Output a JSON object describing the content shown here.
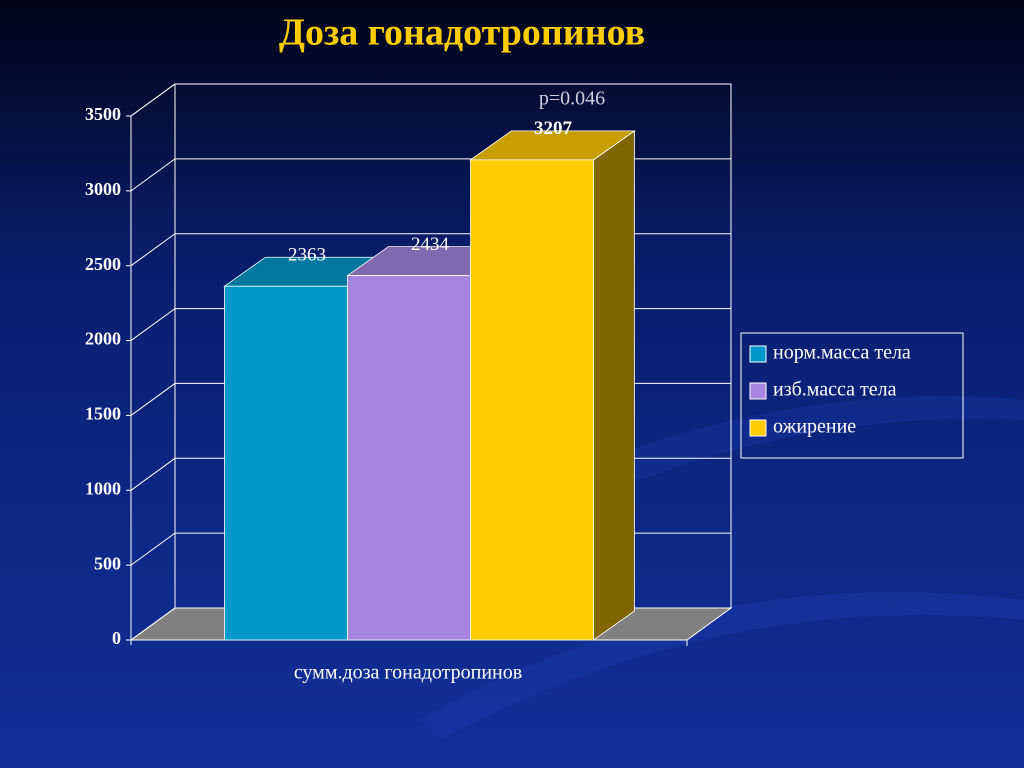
{
  "chart_data": {
    "type": "bar3d",
    "title": "Доза гонадотропинов",
    "categories": [
      "сумм.доза гонадотропинов"
    ],
    "series": [
      {
        "name": "норм.масса тела",
        "color": "#0099cc",
        "values": [
          2363
        ]
      },
      {
        "name": "изб.масса тела",
        "color": "#a585e0",
        "values": [
          2434
        ]
      },
      {
        "name": "ожирение",
        "color": "#ffcc00",
        "values": [
          3207
        ]
      }
    ],
    "annotation": "p=0.046",
    "ylim": [
      0,
      3500
    ],
    "yticks": [
      0,
      500,
      1000,
      1500,
      2000,
      2500,
      3000,
      3500
    ],
    "grid": true,
    "legend": "right"
  }
}
